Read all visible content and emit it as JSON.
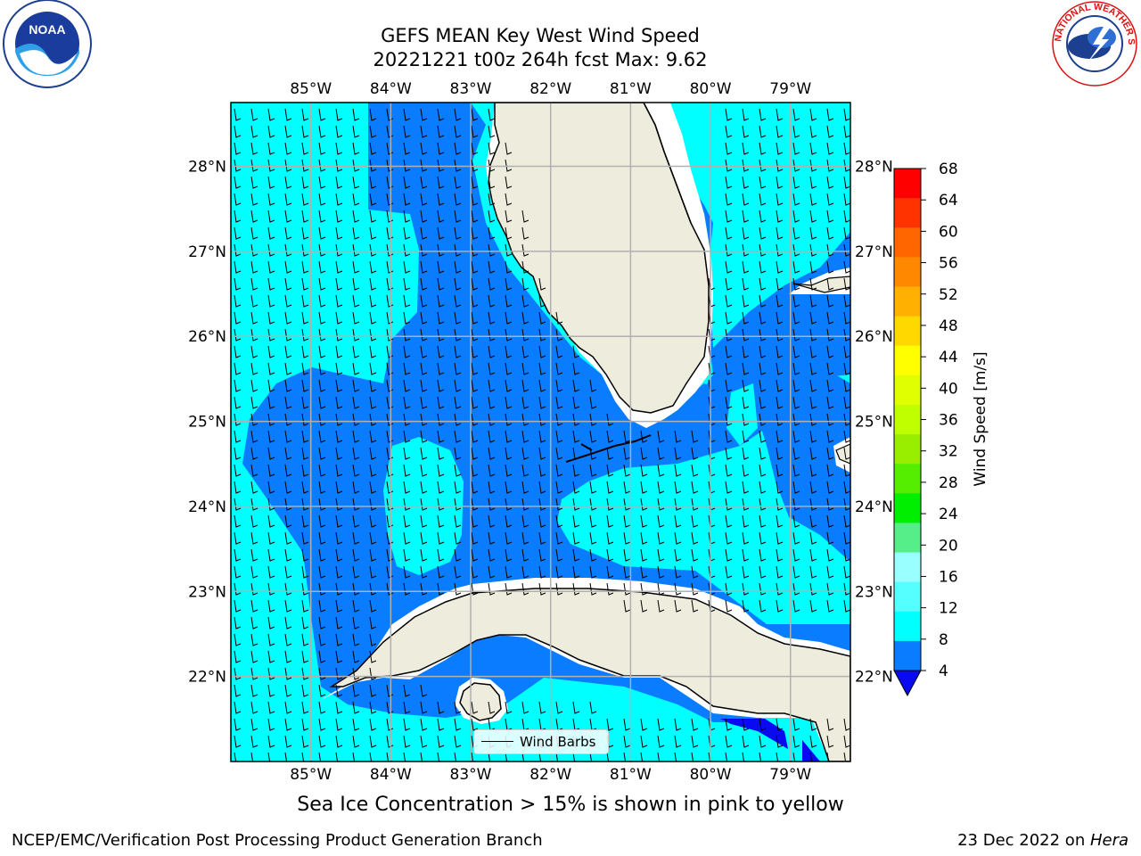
{
  "title": {
    "line1": "GEFS MEAN Key West Wind Speed",
    "line2": "20221221 t00z 264h fcst   Max: 9.62"
  },
  "logos": {
    "left": "noaa-logo",
    "left_text": "NOAA",
    "right": "national-weather-service-logo",
    "right_text": "NATIONAL WEATHER SERVICE"
  },
  "map": {
    "lon_labels": [
      "85°W",
      "84°W",
      "83°W",
      "82°W",
      "81°W",
      "80°W",
      "79°W"
    ],
    "lat_labels": [
      "28°N",
      "27°N",
      "26°N",
      "25°N",
      "24°N",
      "23°N",
      "22°N"
    ],
    "extent": {
      "lon": [
        -86.0,
        -78.25
      ],
      "lat": [
        21.0,
        28.75
      ]
    },
    "colors": {
      "land": "#eeecdc",
      "ocean_4_8": "#0a7cff",
      "ocean_8_12": "#00ffff",
      "ocean_0_4": "#0a0af0",
      "grid": "#b0b0b0"
    },
    "legend": "Wind Barbs",
    "features": [
      "Florida",
      "Florida Keys",
      "Cuba",
      "Isla de la Juventud",
      "Bahamas"
    ]
  },
  "colorbar": {
    "label": "Wind Speed [m/s]",
    "ticks": [
      "68",
      "64",
      "60",
      "56",
      "52",
      "48",
      "44",
      "40",
      "36",
      "32",
      "28",
      "24",
      "20",
      "16",
      "12",
      "8",
      "4"
    ],
    "colors": [
      "#ff0000",
      "#ff3300",
      "#ff6600",
      "#ff8800",
      "#ffb000",
      "#ffd800",
      "#ffff00",
      "#e0ff00",
      "#c0ff00",
      "#99ee00",
      "#55ee00",
      "#00ee00",
      "#55ee88",
      "#99ffff",
      "#55ffff",
      "#00ffff",
      "#0a7cff"
    ],
    "under_color": "#0a0af0"
  },
  "note": "Sea Ice Concentration > 15% is shown in pink to yellow",
  "footer": {
    "left": "NCEP/EMC/Verification Post Processing Product Generation Branch",
    "date": "23 Dec 2022 on ",
    "host": "Hera"
  }
}
